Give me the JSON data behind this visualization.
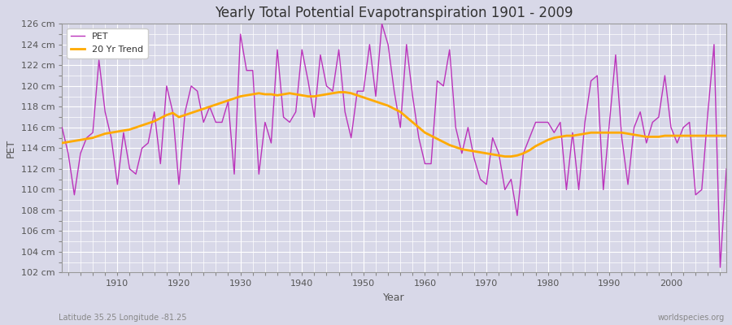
{
  "title": "Yearly Total Potential Evapotranspiration 1901 - 2009",
  "ylabel": "PET",
  "xlabel": "Year",
  "bottom_left_label": "Latitude 35.25 Longitude -81.25",
  "bottom_right_label": "worldspecies.org",
  "ylim": [
    102,
    126
  ],
  "ytick_step": 2,
  "background_color": "#d8d8e8",
  "plot_bg_color": "#d8d8e8",
  "grid_color": "#ffffff",
  "pet_color": "#bb33bb",
  "trend_color": "#ffaa00",
  "pet_linewidth": 1.0,
  "trend_linewidth": 2.0,
  "years": [
    1901,
    1902,
    1903,
    1904,
    1905,
    1906,
    1907,
    1908,
    1909,
    1910,
    1911,
    1912,
    1913,
    1914,
    1915,
    1916,
    1917,
    1918,
    1919,
    1920,
    1921,
    1922,
    1923,
    1924,
    1925,
    1926,
    1927,
    1928,
    1929,
    1930,
    1931,
    1932,
    1933,
    1934,
    1935,
    1936,
    1937,
    1938,
    1939,
    1940,
    1941,
    1942,
    1943,
    1944,
    1945,
    1946,
    1947,
    1948,
    1949,
    1950,
    1951,
    1952,
    1953,
    1954,
    1955,
    1956,
    1957,
    1958,
    1959,
    1960,
    1961,
    1962,
    1963,
    1964,
    1965,
    1966,
    1967,
    1968,
    1969,
    1970,
    1971,
    1972,
    1973,
    1974,
    1975,
    1976,
    1977,
    1978,
    1979,
    1980,
    1981,
    1982,
    1983,
    1984,
    1985,
    1986,
    1987,
    1988,
    1989,
    1990,
    1991,
    1992,
    1993,
    1994,
    1995,
    1996,
    1997,
    1998,
    1999,
    2000,
    2001,
    2002,
    2003,
    2004,
    2005,
    2006,
    2007,
    2008,
    2009
  ],
  "pet_values": [
    116.0,
    113.5,
    109.5,
    113.5,
    115.0,
    115.5,
    122.5,
    117.5,
    115.0,
    110.5,
    115.5,
    112.0,
    111.5,
    114.0,
    114.5,
    117.5,
    112.5,
    120.0,
    117.5,
    110.5,
    117.5,
    120.0,
    119.5,
    116.5,
    118.0,
    116.5,
    116.5,
    118.5,
    111.5,
    125.0,
    121.5,
    121.5,
    111.5,
    116.5,
    114.5,
    123.5,
    117.0,
    116.5,
    117.5,
    123.5,
    120.5,
    117.0,
    123.0,
    120.0,
    119.5,
    123.5,
    117.5,
    115.0,
    119.5,
    119.5,
    124.0,
    119.0,
    126.0,
    124.0,
    119.5,
    116.0,
    124.0,
    119.0,
    115.0,
    112.5,
    112.5,
    120.5,
    120.0,
    123.5,
    116.0,
    113.5,
    116.0,
    113.0,
    111.0,
    110.5,
    115.0,
    113.5,
    110.0,
    111.0,
    107.5,
    113.5,
    115.0,
    116.5,
    116.5,
    116.5,
    115.5,
    116.5,
    110.0,
    115.5,
    110.0,
    116.5,
    120.5,
    121.0,
    110.0,
    116.5,
    123.0,
    115.0,
    110.5,
    116.0,
    117.5,
    114.5,
    116.5,
    117.0,
    121.0,
    116.0,
    114.5,
    116.0,
    116.5,
    109.5,
    110.0,
    117.5,
    124.0,
    102.5,
    112.0
  ],
  "trend_values": [
    114.5,
    114.6,
    114.7,
    114.8,
    114.9,
    115.0,
    115.2,
    115.4,
    115.5,
    115.6,
    115.7,
    115.8,
    116.0,
    116.2,
    116.4,
    116.6,
    116.9,
    117.2,
    117.4,
    117.0,
    117.2,
    117.4,
    117.6,
    117.8,
    118.0,
    118.2,
    118.4,
    118.6,
    118.8,
    119.0,
    119.1,
    119.2,
    119.3,
    119.2,
    119.2,
    119.1,
    119.2,
    119.3,
    119.2,
    119.1,
    119.0,
    119.0,
    119.1,
    119.2,
    119.3,
    119.4,
    119.4,
    119.3,
    119.1,
    118.9,
    118.7,
    118.5,
    118.3,
    118.1,
    117.8,
    117.5,
    117.0,
    116.5,
    116.0,
    115.5,
    115.2,
    114.9,
    114.6,
    114.3,
    114.1,
    113.9,
    113.8,
    113.7,
    113.6,
    113.5,
    113.4,
    113.3,
    113.2,
    113.2,
    113.3,
    113.5,
    113.8,
    114.2,
    114.5,
    114.8,
    115.0,
    115.1,
    115.2,
    115.2,
    115.3,
    115.4,
    115.5,
    115.5,
    115.5,
    115.5,
    115.5,
    115.5,
    115.4,
    115.3,
    115.2,
    115.1,
    115.1,
    115.1,
    115.2,
    115.2,
    115.2,
    115.2,
    115.2,
    115.2,
    115.2,
    115.2,
    115.2,
    115.2,
    115.2
  ]
}
